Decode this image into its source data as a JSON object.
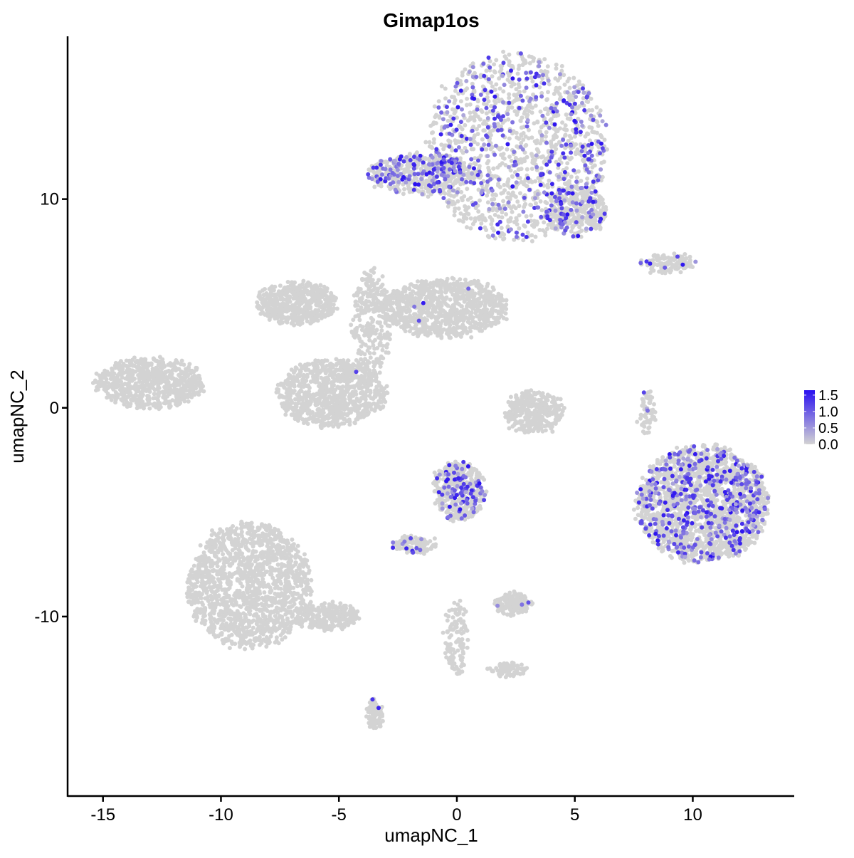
{
  "chart_data": {
    "type": "scatter",
    "title": "Gimap1os",
    "xlabel": "umapNC_1",
    "ylabel": "umapNC_2",
    "xlim": [
      -16.5,
      14.3
    ],
    "ylim": [
      -18.6,
      17.8
    ],
    "x_ticks": [
      -15,
      -10,
      -5,
      0,
      5,
      10
    ],
    "x_tick_labels": [
      "-15",
      "-10",
      "-5",
      "0",
      "5",
      "10"
    ],
    "y_ticks": [
      -10,
      0,
      10
    ],
    "y_tick_labels": [
      "-10",
      "0",
      "10"
    ],
    "grid": false,
    "legend": {
      "placement": "right",
      "type": "colorbar",
      "ticks": [
        1.5,
        1.0,
        0.5,
        0.0
      ],
      "tick_labels": [
        "1.5",
        "1.0",
        "0.5",
        "0.0"
      ],
      "min": 0.0,
      "max": 1.65,
      "low_color": "#d3d3d3",
      "high_color": "#2a10f0"
    },
    "clusters": [
      {
        "name": "top-complex",
        "cx": 2.5,
        "cy": 12.5,
        "rx": 3.8,
        "ry": 4.5,
        "n": 1400,
        "expr_frac": 0.22
      },
      {
        "name": "top-arm-left",
        "cx": -1.5,
        "cy": 11.2,
        "rx": 2.2,
        "ry": 1.0,
        "n": 500,
        "expr_frac": 0.28
      },
      {
        "name": "top-right-lobe",
        "cx": 5.0,
        "cy": 9.5,
        "rx": 1.3,
        "ry": 1.2,
        "n": 350,
        "expr_frac": 0.15
      },
      {
        "name": "top-right-thin",
        "cx": 9.0,
        "cy": 6.9,
        "rx": 1.1,
        "ry": 0.4,
        "n": 120,
        "expr_frac": 0.05
      },
      {
        "name": "center-left-lobe",
        "cx": -6.8,
        "cy": 5.0,
        "rx": 1.7,
        "ry": 1.0,
        "n": 550,
        "expr_frac": 0.002
      },
      {
        "name": "center-right-lobe",
        "cx": -0.5,
        "cy": 4.8,
        "rx": 2.6,
        "ry": 1.4,
        "n": 900,
        "expr_frac": 0.002
      },
      {
        "name": "center-stem",
        "cx": -3.6,
        "cy": 4.0,
        "rx": 0.8,
        "ry": 2.6,
        "n": 300,
        "expr_frac": 0.002
      },
      {
        "name": "center-bottom-lobe",
        "cx": -5.3,
        "cy": 0.7,
        "rx": 2.3,
        "ry": 1.6,
        "n": 900,
        "expr_frac": 0.002
      },
      {
        "name": "far-left",
        "cx": -13.0,
        "cy": 1.2,
        "rx": 2.3,
        "ry": 1.2,
        "n": 700,
        "expr_frac": 0.0
      },
      {
        "name": "small-center",
        "cx": 3.3,
        "cy": -0.2,
        "rx": 1.2,
        "ry": 1.0,
        "n": 350,
        "expr_frac": 0.0
      },
      {
        "name": "right-big",
        "cx": 10.4,
        "cy": -4.6,
        "rx": 2.8,
        "ry": 2.8,
        "n": 2000,
        "expr_frac": 0.2
      },
      {
        "name": "right-thin",
        "cx": 8.1,
        "cy": -0.3,
        "rx": 0.3,
        "ry": 1.2,
        "n": 60,
        "expr_frac": 0.05
      },
      {
        "name": "mid-bottom",
        "cx": 0.1,
        "cy": -4.0,
        "rx": 1.1,
        "ry": 1.4,
        "n": 450,
        "expr_frac": 0.17
      },
      {
        "name": "mid-bottom-arm",
        "cx": -1.8,
        "cy": -6.6,
        "rx": 0.9,
        "ry": 0.4,
        "n": 120,
        "expr_frac": 0.08
      },
      {
        "name": "bottom-left-big",
        "cx": -8.8,
        "cy": -8.5,
        "rx": 2.6,
        "ry": 3.0,
        "n": 1500,
        "expr_frac": 0.001
      },
      {
        "name": "bottom-left-tail",
        "cx": -5.5,
        "cy": -10.0,
        "rx": 1.4,
        "ry": 0.6,
        "n": 250,
        "expr_frac": 0.0
      },
      {
        "name": "bottom-small-right",
        "cx": 2.4,
        "cy": -9.4,
        "rx": 0.8,
        "ry": 0.5,
        "n": 160,
        "expr_frac": 0.03
      },
      {
        "name": "bottom-stem",
        "cx": 0.0,
        "cy": -11.0,
        "rx": 0.5,
        "ry": 1.8,
        "n": 120,
        "expr_frac": 0.01
      },
      {
        "name": "bottom-stem-foot",
        "cx": 2.2,
        "cy": -12.6,
        "rx": 0.8,
        "ry": 0.3,
        "n": 80,
        "expr_frac": 0.0
      },
      {
        "name": "bottom-left-drop",
        "cx": -3.5,
        "cy": -14.7,
        "rx": 0.3,
        "ry": 0.7,
        "n": 80,
        "expr_frac": 0.02
      }
    ]
  }
}
